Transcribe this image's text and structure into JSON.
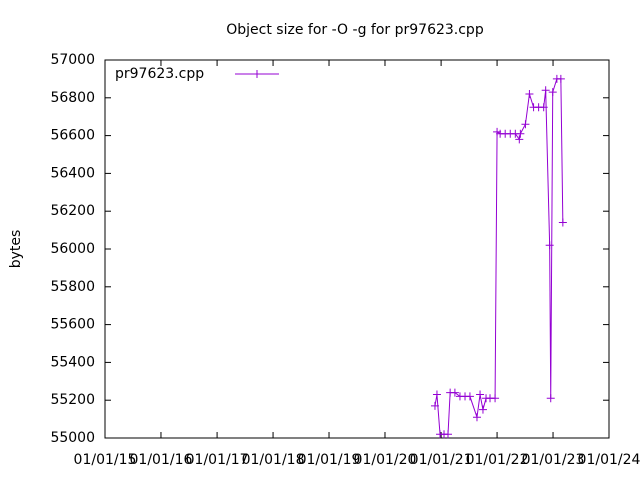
{
  "chart_data": {
    "type": "line",
    "title": "Object size for -O -g for pr97623.cpp",
    "ylabel": "bytes",
    "x": [
      "2020-11-22",
      "2020-12-05",
      "2020-12-25",
      "2021-01-20",
      "2021-02-15",
      "2021-03-01",
      "2021-04-01",
      "2021-05-04",
      "2021-06-06",
      "2021-07-08",
      "2021-08-23",
      "2021-09-12",
      "2021-10-01",
      "2021-10-21",
      "2021-11-16",
      "2021-12-19",
      "2022-01-01",
      "2022-01-21",
      "2022-02-23",
      "2022-03-28",
      "2022-04-30",
      "2022-05-26",
      "2022-06-02",
      "2022-07-05",
      "2022-07-31",
      "2022-08-27",
      "2022-09-29",
      "2022-11-01",
      "2022-11-14",
      "2022-12-10",
      "2022-12-17",
      "2022-12-30",
      "2023-01-26",
      "2023-02-21",
      "2023-03-06"
    ],
    "series": [
      {
        "name": "pr97623.cpp",
        "color": "#9400d3",
        "values": [
          55170,
          55230,
          55020,
          55020,
          55020,
          55240,
          55240,
          55220,
          55220,
          55220,
          55110,
          55230,
          55150,
          55210,
          55210,
          55210,
          56620,
          56610,
          56610,
          56610,
          56610,
          56580,
          56610,
          56660,
          56820,
          56750,
          56750,
          56750,
          56840,
          56020,
          55210,
          56830,
          56900,
          56900,
          56140
        ]
      }
    ],
    "xlim": [
      "2015-01-01",
      "2024-01-01"
    ],
    "xticks": [
      {
        "value": "2015-01-01",
        "label": "01/01/15"
      },
      {
        "value": "2016-01-01",
        "label": "01/01/16"
      },
      {
        "value": "2017-01-01",
        "label": "01/01/17"
      },
      {
        "value": "2018-01-01",
        "label": "01/01/18"
      },
      {
        "value": "2019-01-01",
        "label": "01/01/19"
      },
      {
        "value": "2020-01-01",
        "label": "01/01/20"
      },
      {
        "value": "2021-01-01",
        "label": "01/01/21"
      },
      {
        "value": "2022-01-01",
        "label": "01/01/22"
      },
      {
        "value": "2023-01-01",
        "label": "01/01/23"
      },
      {
        "value": "2024-01-01",
        "label": "01/01/24"
      }
    ],
    "ylim": [
      55000,
      57000
    ],
    "yticks": [
      55000,
      55200,
      55400,
      55600,
      55800,
      56000,
      56200,
      56400,
      56600,
      56800,
      57000
    ],
    "grid": false,
    "legend": "top-left"
  }
}
